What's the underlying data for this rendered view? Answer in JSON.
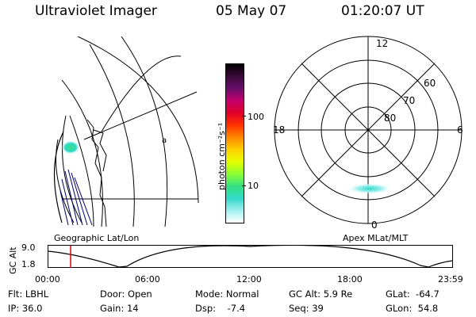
{
  "header": {
    "instrument": "Ultraviolet Imager",
    "date": "05 May 07",
    "time": "01:20:07 UT"
  },
  "colorbar": {
    "label": "photon cm⁻²s⁻¹",
    "ticks": [
      "100",
      "10"
    ],
    "colors": [
      "#000000",
      "#3a0a3a",
      "#6a0d6a",
      "#c3006a",
      "#e0002a",
      "#ff3300",
      "#ff8800",
      "#ffd000",
      "#e6ff00",
      "#8cff33",
      "#33e07f",
      "#33d9c8",
      "#a0f0f0",
      "#ffffff"
    ]
  },
  "left_panel": {
    "title": "Geographic Lat/Lon",
    "marker": "a"
  },
  "polar_plot": {
    "title": "Apex MLat/MLT",
    "mlt_labels": {
      "top": "12",
      "left": "18",
      "right": "6",
      "bottom": "0"
    },
    "lat_labels": [
      "60",
      "70",
      "80"
    ]
  },
  "altitude_strip": {
    "ylabel": "GC Alt",
    "ymax": "9.0",
    "ymin": "1.8",
    "times": [
      "00:00",
      "06:00",
      "12:00",
      "18:00",
      "23:59"
    ],
    "current_marker_color": "#e00000"
  },
  "status": {
    "flt": "Flt: LBHL",
    "ip": "IP: 36.0",
    "door": "Door: Open",
    "gain": "Gain: 14",
    "mode": "Mode: Normal",
    "dsp": "Dsp:    -7.4",
    "gc_alt": "GC Alt: 5.9 Re",
    "seq": "Seq: 39",
    "glat": "GLat:  -64.7",
    "glon": "GLon:  54.8"
  }
}
